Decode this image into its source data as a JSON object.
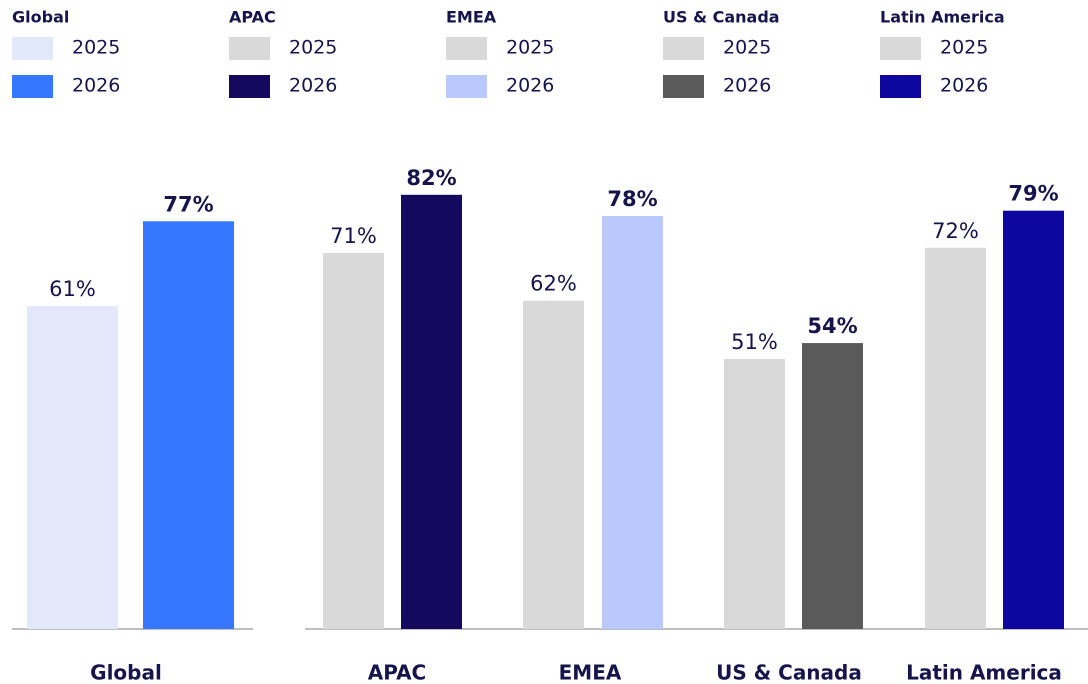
{
  "chart_data": {
    "type": "bar",
    "categories": [
      "Global",
      "APAC",
      "EMEA",
      "US & Canada",
      "Latin America"
    ],
    "series": [
      {
        "name": "2025",
        "values": [
          61,
          71,
          62,
          51,
          72
        ],
        "value_labels": [
          "61%",
          "71%",
          "62%",
          "51%",
          "72%"
        ],
        "colors": [
          "#e3e8fb",
          "#d9d9d9",
          "#d9d9d9",
          "#d9d9d9",
          "#d9d9d9"
        ]
      },
      {
        "name": "2026",
        "values": [
          77,
          82,
          78,
          54,
          79
        ],
        "value_labels": [
          "77%",
          "82%",
          "78%",
          "54%",
          "79%"
        ],
        "colors": [
          "#3677ff",
          "#14095c",
          "#b9c8fd",
          "#5a5a5a",
          "#0d07a0"
        ]
      }
    ],
    "ylim": [
      0,
      100
    ]
  }
}
